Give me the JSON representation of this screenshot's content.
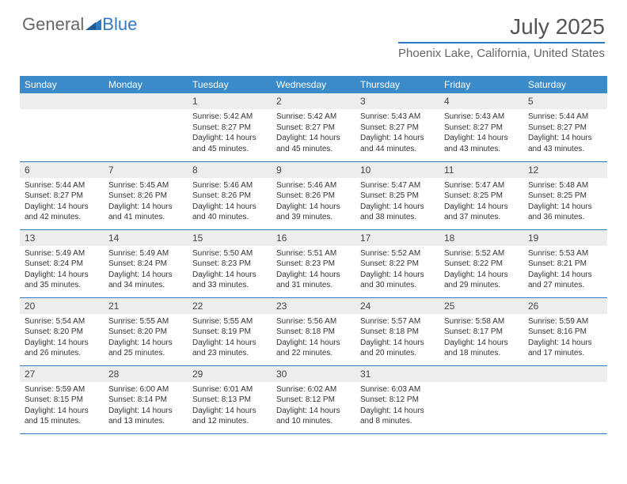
{
  "brand": {
    "part1": "General",
    "part2": "Blue"
  },
  "title": "July 2025",
  "location": "Phoenix Lake, California, United States",
  "colors": {
    "header_bg": "#3b8bca",
    "accent": "#2f7ac0",
    "daynum_bg": "#eceded",
    "text": "#333333"
  },
  "weekdays": [
    "Sunday",
    "Monday",
    "Tuesday",
    "Wednesday",
    "Thursday",
    "Friday",
    "Saturday"
  ],
  "weeks": [
    [
      {
        "n": "",
        "sr": "",
        "ss": "",
        "dl": ""
      },
      {
        "n": "",
        "sr": "",
        "ss": "",
        "dl": ""
      },
      {
        "n": "1",
        "sr": "Sunrise: 5:42 AM",
        "ss": "Sunset: 8:27 PM",
        "dl": "Daylight: 14 hours and 45 minutes."
      },
      {
        "n": "2",
        "sr": "Sunrise: 5:42 AM",
        "ss": "Sunset: 8:27 PM",
        "dl": "Daylight: 14 hours and 45 minutes."
      },
      {
        "n": "3",
        "sr": "Sunrise: 5:43 AM",
        "ss": "Sunset: 8:27 PM",
        "dl": "Daylight: 14 hours and 44 minutes."
      },
      {
        "n": "4",
        "sr": "Sunrise: 5:43 AM",
        "ss": "Sunset: 8:27 PM",
        "dl": "Daylight: 14 hours and 43 minutes."
      },
      {
        "n": "5",
        "sr": "Sunrise: 5:44 AM",
        "ss": "Sunset: 8:27 PM",
        "dl": "Daylight: 14 hours and 43 minutes."
      }
    ],
    [
      {
        "n": "6",
        "sr": "Sunrise: 5:44 AM",
        "ss": "Sunset: 8:27 PM",
        "dl": "Daylight: 14 hours and 42 minutes."
      },
      {
        "n": "7",
        "sr": "Sunrise: 5:45 AM",
        "ss": "Sunset: 8:26 PM",
        "dl": "Daylight: 14 hours and 41 minutes."
      },
      {
        "n": "8",
        "sr": "Sunrise: 5:46 AM",
        "ss": "Sunset: 8:26 PM",
        "dl": "Daylight: 14 hours and 40 minutes."
      },
      {
        "n": "9",
        "sr": "Sunrise: 5:46 AM",
        "ss": "Sunset: 8:26 PM",
        "dl": "Daylight: 14 hours and 39 minutes."
      },
      {
        "n": "10",
        "sr": "Sunrise: 5:47 AM",
        "ss": "Sunset: 8:25 PM",
        "dl": "Daylight: 14 hours and 38 minutes."
      },
      {
        "n": "11",
        "sr": "Sunrise: 5:47 AM",
        "ss": "Sunset: 8:25 PM",
        "dl": "Daylight: 14 hours and 37 minutes."
      },
      {
        "n": "12",
        "sr": "Sunrise: 5:48 AM",
        "ss": "Sunset: 8:25 PM",
        "dl": "Daylight: 14 hours and 36 minutes."
      }
    ],
    [
      {
        "n": "13",
        "sr": "Sunrise: 5:49 AM",
        "ss": "Sunset: 8:24 PM",
        "dl": "Daylight: 14 hours and 35 minutes."
      },
      {
        "n": "14",
        "sr": "Sunrise: 5:49 AM",
        "ss": "Sunset: 8:24 PM",
        "dl": "Daylight: 14 hours and 34 minutes."
      },
      {
        "n": "15",
        "sr": "Sunrise: 5:50 AM",
        "ss": "Sunset: 8:23 PM",
        "dl": "Daylight: 14 hours and 33 minutes."
      },
      {
        "n": "16",
        "sr": "Sunrise: 5:51 AM",
        "ss": "Sunset: 8:23 PM",
        "dl": "Daylight: 14 hours and 31 minutes."
      },
      {
        "n": "17",
        "sr": "Sunrise: 5:52 AM",
        "ss": "Sunset: 8:22 PM",
        "dl": "Daylight: 14 hours and 30 minutes."
      },
      {
        "n": "18",
        "sr": "Sunrise: 5:52 AM",
        "ss": "Sunset: 8:22 PM",
        "dl": "Daylight: 14 hours and 29 minutes."
      },
      {
        "n": "19",
        "sr": "Sunrise: 5:53 AM",
        "ss": "Sunset: 8:21 PM",
        "dl": "Daylight: 14 hours and 27 minutes."
      }
    ],
    [
      {
        "n": "20",
        "sr": "Sunrise: 5:54 AM",
        "ss": "Sunset: 8:20 PM",
        "dl": "Daylight: 14 hours and 26 minutes."
      },
      {
        "n": "21",
        "sr": "Sunrise: 5:55 AM",
        "ss": "Sunset: 8:20 PM",
        "dl": "Daylight: 14 hours and 25 minutes."
      },
      {
        "n": "22",
        "sr": "Sunrise: 5:55 AM",
        "ss": "Sunset: 8:19 PM",
        "dl": "Daylight: 14 hours and 23 minutes."
      },
      {
        "n": "23",
        "sr": "Sunrise: 5:56 AM",
        "ss": "Sunset: 8:18 PM",
        "dl": "Daylight: 14 hours and 22 minutes."
      },
      {
        "n": "24",
        "sr": "Sunrise: 5:57 AM",
        "ss": "Sunset: 8:18 PM",
        "dl": "Daylight: 14 hours and 20 minutes."
      },
      {
        "n": "25",
        "sr": "Sunrise: 5:58 AM",
        "ss": "Sunset: 8:17 PM",
        "dl": "Daylight: 14 hours and 18 minutes."
      },
      {
        "n": "26",
        "sr": "Sunrise: 5:59 AM",
        "ss": "Sunset: 8:16 PM",
        "dl": "Daylight: 14 hours and 17 minutes."
      }
    ],
    [
      {
        "n": "27",
        "sr": "Sunrise: 5:59 AM",
        "ss": "Sunset: 8:15 PM",
        "dl": "Daylight: 14 hours and 15 minutes."
      },
      {
        "n": "28",
        "sr": "Sunrise: 6:00 AM",
        "ss": "Sunset: 8:14 PM",
        "dl": "Daylight: 14 hours and 13 minutes."
      },
      {
        "n": "29",
        "sr": "Sunrise: 6:01 AM",
        "ss": "Sunset: 8:13 PM",
        "dl": "Daylight: 14 hours and 12 minutes."
      },
      {
        "n": "30",
        "sr": "Sunrise: 6:02 AM",
        "ss": "Sunset: 8:12 PM",
        "dl": "Daylight: 14 hours and 10 minutes."
      },
      {
        "n": "31",
        "sr": "Sunrise: 6:03 AM",
        "ss": "Sunset: 8:12 PM",
        "dl": "Daylight: 14 hours and 8 minutes."
      },
      {
        "n": "",
        "sr": "",
        "ss": "",
        "dl": ""
      },
      {
        "n": "",
        "sr": "",
        "ss": "",
        "dl": ""
      }
    ]
  ]
}
